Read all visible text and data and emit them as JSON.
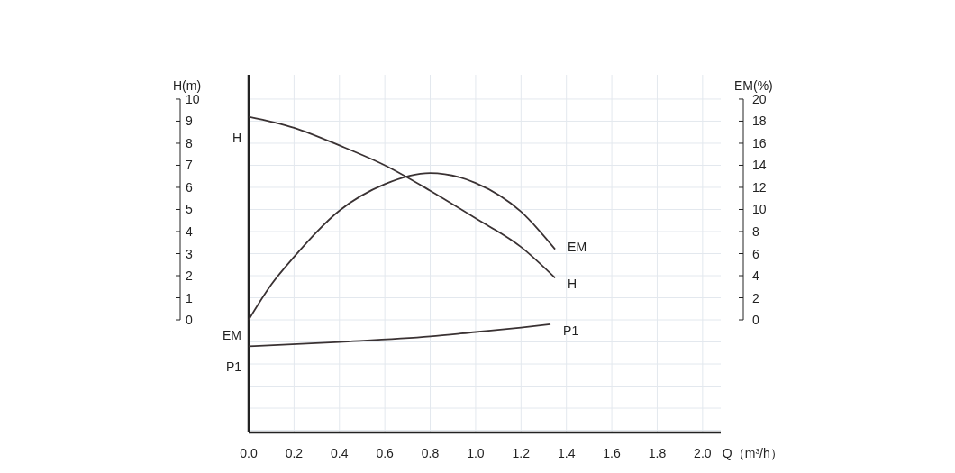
{
  "chart_data": {
    "type": "line",
    "ylabel": "H(m)",
    "y2label": "EM(%)",
    "xlabel": "Q（m³/h）",
    "xlim": [
      0,
      2.08
    ],
    "xticks": [
      {
        "value": 0,
        "label": "0.0"
      },
      0.2,
      0.4,
      0.6,
      0.8,
      {
        "value": 1,
        "label": "1.0"
      },
      1.2,
      1.4,
      1.6,
      1.8,
      {
        "value": 2,
        "label": "2.0"
      }
    ],
    "ylim": [
      -5.1,
      11.1
    ],
    "yticks": [
      0,
      1,
      2,
      3,
      4,
      5,
      6,
      7,
      8,
      9,
      10
    ],
    "y2lim": [
      -10.2,
      22.2
    ],
    "y2ticks": [
      0,
      2,
      4,
      6,
      8,
      10,
      12,
      14,
      16,
      18,
      20
    ],
    "grid": true,
    "legend": false,
    "marker": "none",
    "line_style": "solid",
    "series": [
      {
        "name": "H",
        "color": "#3a3233",
        "x": [
          0,
          0.2,
          0.4,
          0.6,
          0.8,
          1.0,
          1.2,
          1.35
        ],
        "values": [
          9.2,
          8.7,
          7.9,
          7.0,
          5.85,
          4.6,
          3.3,
          1.9
        ]
      },
      {
        "name": "EM",
        "color": "#3a3233",
        "axis": "y2",
        "x": [
          0,
          0.1,
          0.2,
          0.4,
          0.6,
          0.8,
          1.0,
          1.2,
          1.35
        ],
        "values": [
          0,
          3.2,
          5.7,
          9.9,
          12.3,
          13.3,
          12.4,
          9.8,
          6.4
        ]
      },
      {
        "name": "P1",
        "color": "#3a3233",
        "x": [
          0,
          0.4,
          0.8,
          1.0,
          1.2,
          1.33
        ],
        "values": [
          -1.2,
          -1.0,
          -0.75,
          -0.55,
          -0.35,
          -0.2
        ]
      }
    ]
  }
}
